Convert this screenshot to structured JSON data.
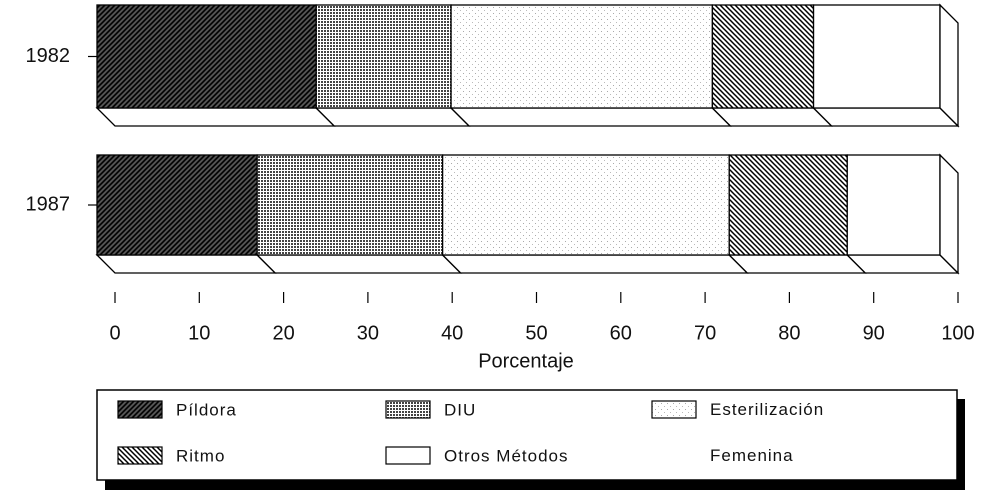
{
  "chart_data": {
    "type": "stacked-bar-horizontal",
    "categories": [
      "1982",
      "1987"
    ],
    "series": [
      {
        "name": "Píldora",
        "values": [
          26,
          19
        ]
      },
      {
        "name": "DIU",
        "values": [
          16,
          22
        ]
      },
      {
        "name": "Esterilización Femenina",
        "values": [
          31,
          34
        ]
      },
      {
        "name": "Ritmo",
        "values": [
          12,
          14
        ]
      },
      {
        "name": "Otros Métodos",
        "values": [
          15,
          11
        ]
      }
    ],
    "xlabel": "Porcentaje",
    "xlim": [
      0,
      100
    ],
    "xticks": [
      0,
      10,
      20,
      30,
      40,
      50,
      60,
      70,
      80,
      90,
      100
    ]
  }
}
